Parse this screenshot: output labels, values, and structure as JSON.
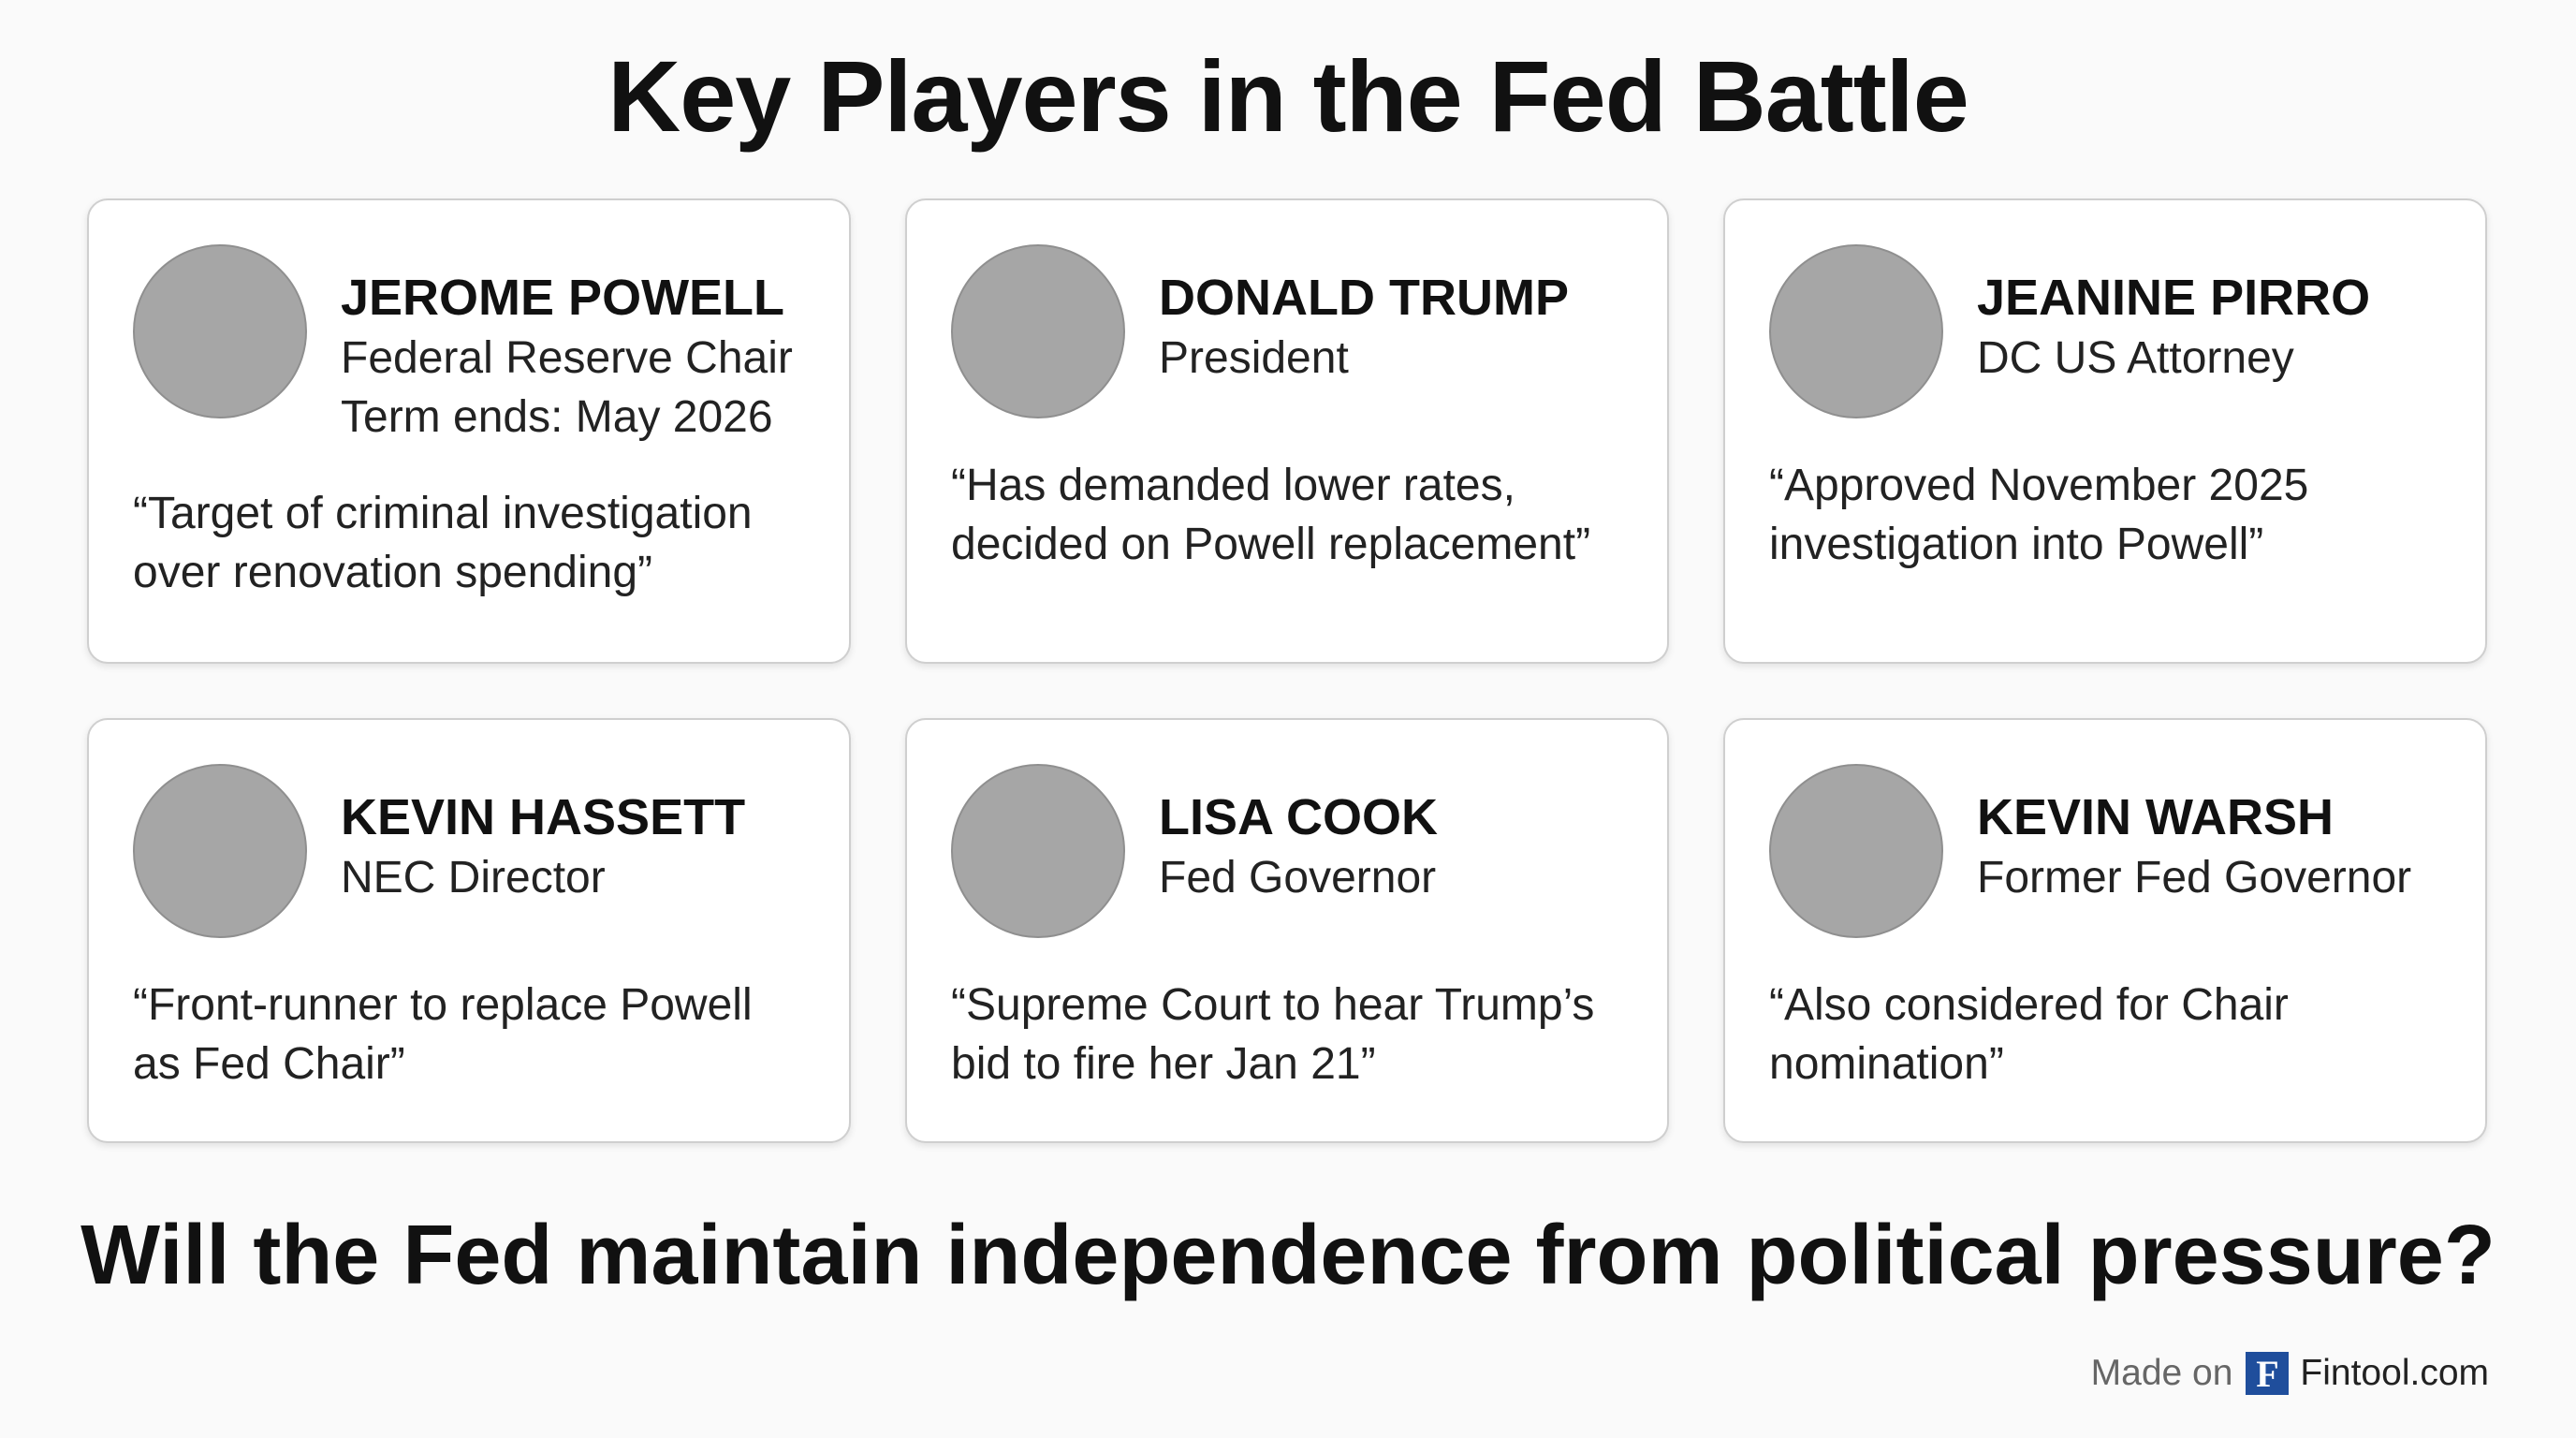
{
  "title": "Key Players in the Fed Battle",
  "cards": [
    {
      "name": "JEROME POWELL",
      "roles": [
        "Federal Reserve Chair",
        "Term ends: May 2026"
      ],
      "quote": "“Target of criminal investigation over renovation spending”"
    },
    {
      "name": "DONALD TRUMP",
      "roles": [
        "President"
      ],
      "quote": "“Has demanded lower rates, decided on Powell replacement”"
    },
    {
      "name": "JEANINE PIRRO",
      "roles": [
        "DC US Attorney"
      ],
      "quote": "“Approved November 2025 investigation into Powell”"
    },
    {
      "name": "KEVIN HASSETT",
      "roles": [
        "NEC Director"
      ],
      "quote": "“Front-runner to replace Powell as Fed Chair”"
    },
    {
      "name": "LISA COOK",
      "roles": [
        "Fed Governor"
      ],
      "quote": "“Supreme Court to hear Trump’s bid to fire her Jan 21”"
    },
    {
      "name": "KEVIN WARSH",
      "roles": [
        "Former Fed Governor"
      ],
      "quote": "“Also considered for Chair nomination”"
    }
  ],
  "question": "Will the Fed maintain independence from political pressure?",
  "footer": {
    "made_on": "Made on",
    "logo": "F",
    "site": "Fintool.com"
  }
}
